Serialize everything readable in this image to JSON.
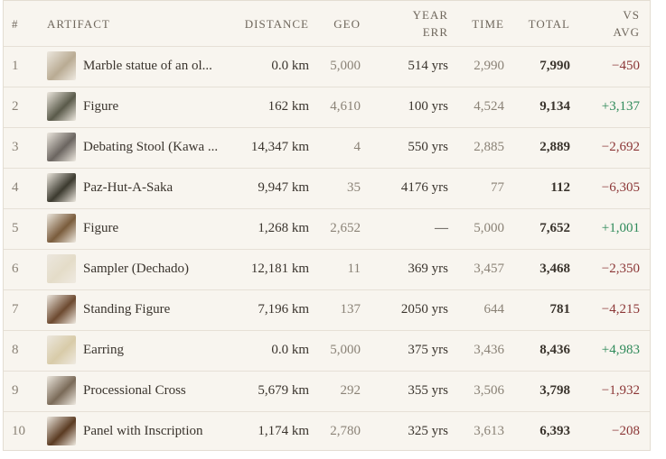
{
  "table": {
    "headers": [
      "#",
      "ARTIFACT",
      "DISTANCE",
      "GEO",
      "YEAR ERR",
      "TIME",
      "TOTAL",
      "VS AVG"
    ],
    "rows": [
      [
        "1",
        "Marble statue of an ol...",
        "0.0 km",
        "5,000",
        "514 yrs",
        "2,990",
        "7,990",
        "−450"
      ],
      [
        "2",
        "Figure",
        "162 km",
        "4,610",
        "100 yrs",
        "4,524",
        "9,134",
        "+3,137"
      ],
      [
        "3",
        "Debating Stool (Kawa ...",
        "14,347 km",
        "4",
        "550 yrs",
        "2,885",
        "2,889",
        "−2,692"
      ],
      [
        "4",
        "Paz-Hut-A-Saka",
        "9,947 km",
        "35",
        "4176 yrs",
        "77",
        "112",
        "−6,305"
      ],
      [
        "5",
        "Figure",
        "1,268 km",
        "2,652",
        "—",
        "5,000",
        "7,652",
        "+1,001"
      ],
      [
        "6",
        "Sampler (Dechado)",
        "12,181 km",
        "11",
        "369 yrs",
        "3,457",
        "3,468",
        "−2,350"
      ],
      [
        "7",
        "Standing Figure",
        "7,196 km",
        "137",
        "2050 yrs",
        "644",
        "781",
        "−4,215"
      ],
      [
        "8",
        "Earring",
        "0.0 km",
        "5,000",
        "375 yrs",
        "3,436",
        "8,436",
        "+4,983"
      ],
      [
        "9",
        "Processional Cross",
        "5,679 km",
        "292",
        "355 yrs",
        "3,506",
        "3,798",
        "−1,932"
      ],
      [
        "10",
        "Panel with Inscription",
        "1,174 km",
        "2,780",
        "325 yrs",
        "3,613",
        "6,393",
        "−208"
      ]
    ]
  }
}
